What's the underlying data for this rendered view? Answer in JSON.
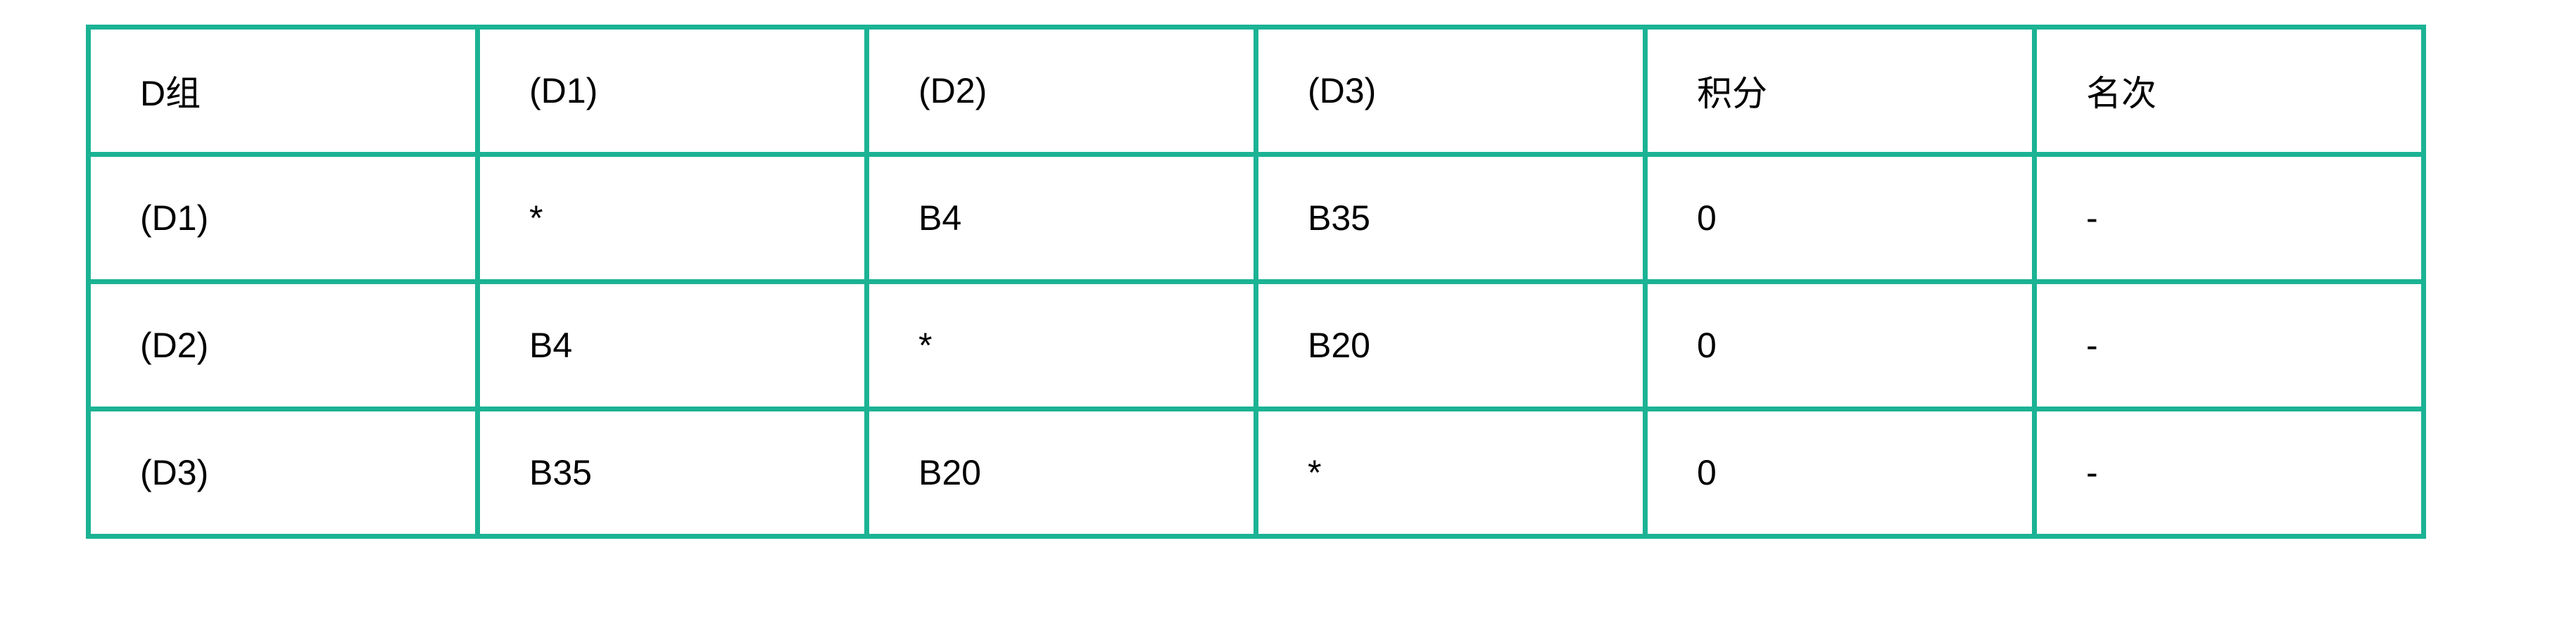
{
  "table": {
    "header": [
      "D组",
      "(D1)",
      "(D2)",
      "(D3)",
      "积分",
      "名次"
    ],
    "rows": [
      [
        "(D1)",
        "*",
        "B4",
        "B35",
        "0",
        "-"
      ],
      [
        "(D2)",
        "B4",
        "*",
        "B20",
        "0",
        "-"
      ],
      [
        "(D3)",
        "B35",
        "B20",
        "*",
        "0",
        "-"
      ]
    ]
  },
  "colors": {
    "border": "#1bb394"
  }
}
